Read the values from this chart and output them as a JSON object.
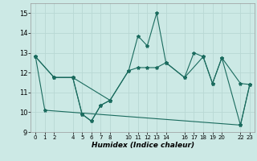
{
  "xlabel": "Humidex (Indice chaleur)",
  "bg_color": "#cce9e5",
  "line_color": "#1a6b5e",
  "grid_color": "#b8d8d4",
  "xlim": [
    -0.5,
    23.5
  ],
  "ylim": [
    9,
    15.5
  ],
  "yticks": [
    9,
    10,
    11,
    12,
    13,
    14,
    15
  ],
  "xtick_positions": [
    0,
    1,
    2,
    4,
    5,
    6,
    7,
    8,
    10,
    11,
    12,
    13,
    14,
    16,
    17,
    18,
    19,
    20,
    22,
    23
  ],
  "xtick_labels": [
    "0",
    "1",
    "2",
    "4",
    "5",
    "6",
    "7",
    "8",
    "10",
    "11",
    "12",
    "13",
    "14",
    "16",
    "17",
    "18",
    "19",
    "20",
    "22",
    "23"
  ],
  "lines": [
    {
      "x": [
        0,
        2,
        4,
        5,
        6,
        7,
        8,
        10,
        11,
        12,
        13,
        14,
        16,
        17,
        18,
        19,
        20,
        22,
        23
      ],
      "y": [
        12.8,
        11.75,
        11.75,
        9.9,
        9.55,
        10.35,
        10.6,
        12.1,
        13.85,
        13.35,
        15.0,
        12.5,
        11.75,
        13.0,
        12.8,
        11.45,
        12.75,
        9.35,
        11.4
      ]
    },
    {
      "x": [
        0,
        2,
        4,
        8,
        10,
        11,
        12,
        13,
        14,
        16,
        18,
        19,
        20,
        22,
        23
      ],
      "y": [
        12.8,
        11.75,
        11.75,
        10.6,
        12.1,
        12.25,
        12.25,
        12.25,
        12.5,
        11.75,
        12.8,
        11.45,
        12.75,
        11.45,
        11.4
      ]
    },
    {
      "x": [
        0,
        1,
        22,
        23
      ],
      "y": [
        12.8,
        10.1,
        9.35,
        11.4
      ]
    },
    {
      "x": [
        2,
        4,
        5,
        6,
        7,
        8
      ],
      "y": [
        11.75,
        11.75,
        9.9,
        9.55,
        10.35,
        10.6
      ]
    }
  ]
}
